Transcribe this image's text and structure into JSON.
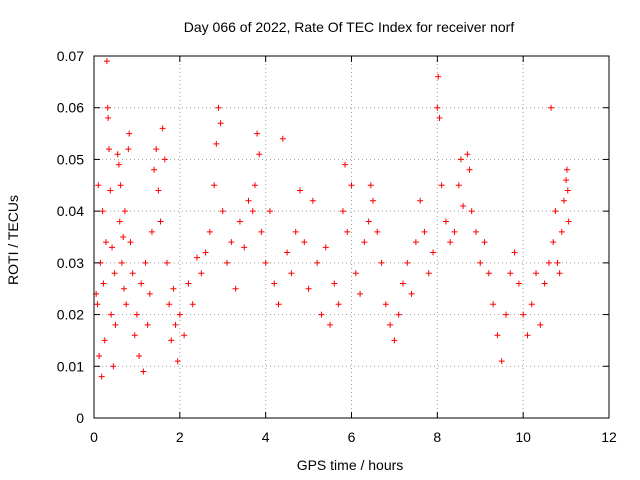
{
  "chart_data": {
    "type": "scatter",
    "title": "Day 066 of 2022, Rate Of TEC Index for receiver norf",
    "xlabel": "GPS time / hours",
    "ylabel": "ROTI / TECUs",
    "xlim": [
      0,
      12
    ],
    "ylim": [
      0,
      0.07
    ],
    "x_ticks": [
      0,
      2,
      4,
      6,
      8,
      10,
      12
    ],
    "x_tick_labels": [
      "0",
      "2",
      "4",
      "6",
      "8",
      "10",
      "12"
    ],
    "y_ticks": [
      0,
      0.01,
      0.02,
      0.03,
      0.04,
      0.05,
      0.06,
      0.07
    ],
    "y_tick_labels": [
      "0",
      "0.01",
      "0.02",
      "0.03",
      "0.04",
      "0.05",
      "0.06",
      "0.07"
    ],
    "grid": true,
    "marker": "+",
    "color": "#ff0000",
    "series": [
      {
        "name": "ROTI",
        "points": [
          [
            0.05,
            0.024
          ],
          [
            0.08,
            0.022
          ],
          [
            0.1,
            0.045
          ],
          [
            0.12,
            0.012
          ],
          [
            0.15,
            0.03
          ],
          [
            0.18,
            0.008
          ],
          [
            0.2,
            0.04
          ],
          [
            0.22,
            0.026
          ],
          [
            0.25,
            0.015
          ],
          [
            0.28,
            0.034
          ],
          [
            0.3,
            0.069
          ],
          [
            0.32,
            0.06
          ],
          [
            0.33,
            0.058
          ],
          [
            0.35,
            0.052
          ],
          [
            0.38,
            0.044
          ],
          [
            0.4,
            0.02
          ],
          [
            0.42,
            0.033
          ],
          [
            0.45,
            0.01
          ],
          [
            0.48,
            0.028
          ],
          [
            0.5,
            0.018
          ],
          [
            0.55,
            0.051
          ],
          [
            0.58,
            0.049
          ],
          [
            0.6,
            0.038
          ],
          [
            0.62,
            0.045
          ],
          [
            0.65,
            0.03
          ],
          [
            0.68,
            0.035
          ],
          [
            0.7,
            0.025
          ],
          [
            0.72,
            0.04
          ],
          [
            0.75,
            0.022
          ],
          [
            0.8,
            0.052
          ],
          [
            0.82,
            0.055
          ],
          [
            0.85,
            0.034
          ],
          [
            0.9,
            0.028
          ],
          [
            0.95,
            0.016
          ],
          [
            1.0,
            0.02
          ],
          [
            1.05,
            0.012
          ],
          [
            1.1,
            0.026
          ],
          [
            1.15,
            0.009
          ],
          [
            1.2,
            0.03
          ],
          [
            1.25,
            0.018
          ],
          [
            1.3,
            0.024
          ],
          [
            1.35,
            0.036
          ],
          [
            1.4,
            0.048
          ],
          [
            1.45,
            0.052
          ],
          [
            1.5,
            0.044
          ],
          [
            1.55,
            0.038
          ],
          [
            1.6,
            0.056
          ],
          [
            1.65,
            0.05
          ],
          [
            1.7,
            0.03
          ],
          [
            1.75,
            0.022
          ],
          [
            1.8,
            0.015
          ],
          [
            1.85,
            0.025
          ],
          [
            1.9,
            0.018
          ],
          [
            1.95,
            0.011
          ],
          [
            2.0,
            0.02
          ],
          [
            2.1,
            0.016
          ],
          [
            2.2,
            0.026
          ],
          [
            2.3,
            0.022
          ],
          [
            2.4,
            0.031
          ],
          [
            2.5,
            0.028
          ],
          [
            2.6,
            0.032
          ],
          [
            2.7,
            0.036
          ],
          [
            2.8,
            0.045
          ],
          [
            2.85,
            0.053
          ],
          [
            2.9,
            0.06
          ],
          [
            2.95,
            0.057
          ],
          [
            3.0,
            0.04
          ],
          [
            3.1,
            0.03
          ],
          [
            3.2,
            0.034
          ],
          [
            3.3,
            0.025
          ],
          [
            3.4,
            0.038
          ],
          [
            3.5,
            0.033
          ],
          [
            3.6,
            0.042
          ],
          [
            3.7,
            0.04
          ],
          [
            3.75,
            0.045
          ],
          [
            3.8,
            0.055
          ],
          [
            3.85,
            0.051
          ],
          [
            3.9,
            0.036
          ],
          [
            4.0,
            0.03
          ],
          [
            4.1,
            0.04
          ],
          [
            4.2,
            0.026
          ],
          [
            4.3,
            0.022
          ],
          [
            4.4,
            0.054
          ],
          [
            4.5,
            0.032
          ],
          [
            4.6,
            0.028
          ],
          [
            4.7,
            0.036
          ],
          [
            4.8,
            0.044
          ],
          [
            4.9,
            0.034
          ],
          [
            5.0,
            0.025
          ],
          [
            5.1,
            0.042
          ],
          [
            5.2,
            0.03
          ],
          [
            5.3,
            0.02
          ],
          [
            5.4,
            0.033
          ],
          [
            5.5,
            0.018
          ],
          [
            5.6,
            0.026
          ],
          [
            5.7,
            0.022
          ],
          [
            5.8,
            0.04
          ],
          [
            5.85,
            0.049
          ],
          [
            5.9,
            0.036
          ],
          [
            6.0,
            0.045
          ],
          [
            6.1,
            0.028
          ],
          [
            6.2,
            0.024
          ],
          [
            6.3,
            0.034
          ],
          [
            6.4,
            0.038
          ],
          [
            6.45,
            0.045
          ],
          [
            6.5,
            0.042
          ],
          [
            6.6,
            0.036
          ],
          [
            6.7,
            0.03
          ],
          [
            6.8,
            0.022
          ],
          [
            6.9,
            0.018
          ],
          [
            7.0,
            0.015
          ],
          [
            7.1,
            0.02
          ],
          [
            7.2,
            0.026
          ],
          [
            7.3,
            0.03
          ],
          [
            7.4,
            0.024
          ],
          [
            7.5,
            0.034
          ],
          [
            7.6,
            0.042
          ],
          [
            7.7,
            0.036
          ],
          [
            7.8,
            0.028
          ],
          [
            7.9,
            0.032
          ],
          [
            8.0,
            0.06
          ],
          [
            8.02,
            0.066
          ],
          [
            8.05,
            0.058
          ],
          [
            8.1,
            0.045
          ],
          [
            8.2,
            0.038
          ],
          [
            8.3,
            0.034
          ],
          [
            8.4,
            0.036
          ],
          [
            8.5,
            0.045
          ],
          [
            8.55,
            0.05
          ],
          [
            8.6,
            0.041
          ],
          [
            8.7,
            0.051
          ],
          [
            8.75,
            0.048
          ],
          [
            8.8,
            0.04
          ],
          [
            8.9,
            0.036
          ],
          [
            9.0,
            0.03
          ],
          [
            9.1,
            0.034
          ],
          [
            9.2,
            0.028
          ],
          [
            9.3,
            0.022
          ],
          [
            9.4,
            0.016
          ],
          [
            9.5,
            0.011
          ],
          [
            9.6,
            0.02
          ],
          [
            9.7,
            0.028
          ],
          [
            9.8,
            0.032
          ],
          [
            9.9,
            0.026
          ],
          [
            10.0,
            0.02
          ],
          [
            10.1,
            0.016
          ],
          [
            10.2,
            0.022
          ],
          [
            10.3,
            0.028
          ],
          [
            10.4,
            0.018
          ],
          [
            10.5,
            0.026
          ],
          [
            10.6,
            0.03
          ],
          [
            10.65,
            0.06
          ],
          [
            10.7,
            0.034
          ],
          [
            10.75,
            0.04
          ],
          [
            10.8,
            0.03
          ],
          [
            10.85,
            0.028
          ],
          [
            10.9,
            0.036
          ],
          [
            10.95,
            0.042
          ],
          [
            11.0,
            0.046
          ],
          [
            11.02,
            0.048
          ],
          [
            11.04,
            0.044
          ],
          [
            11.06,
            0.038
          ]
        ]
      }
    ]
  }
}
